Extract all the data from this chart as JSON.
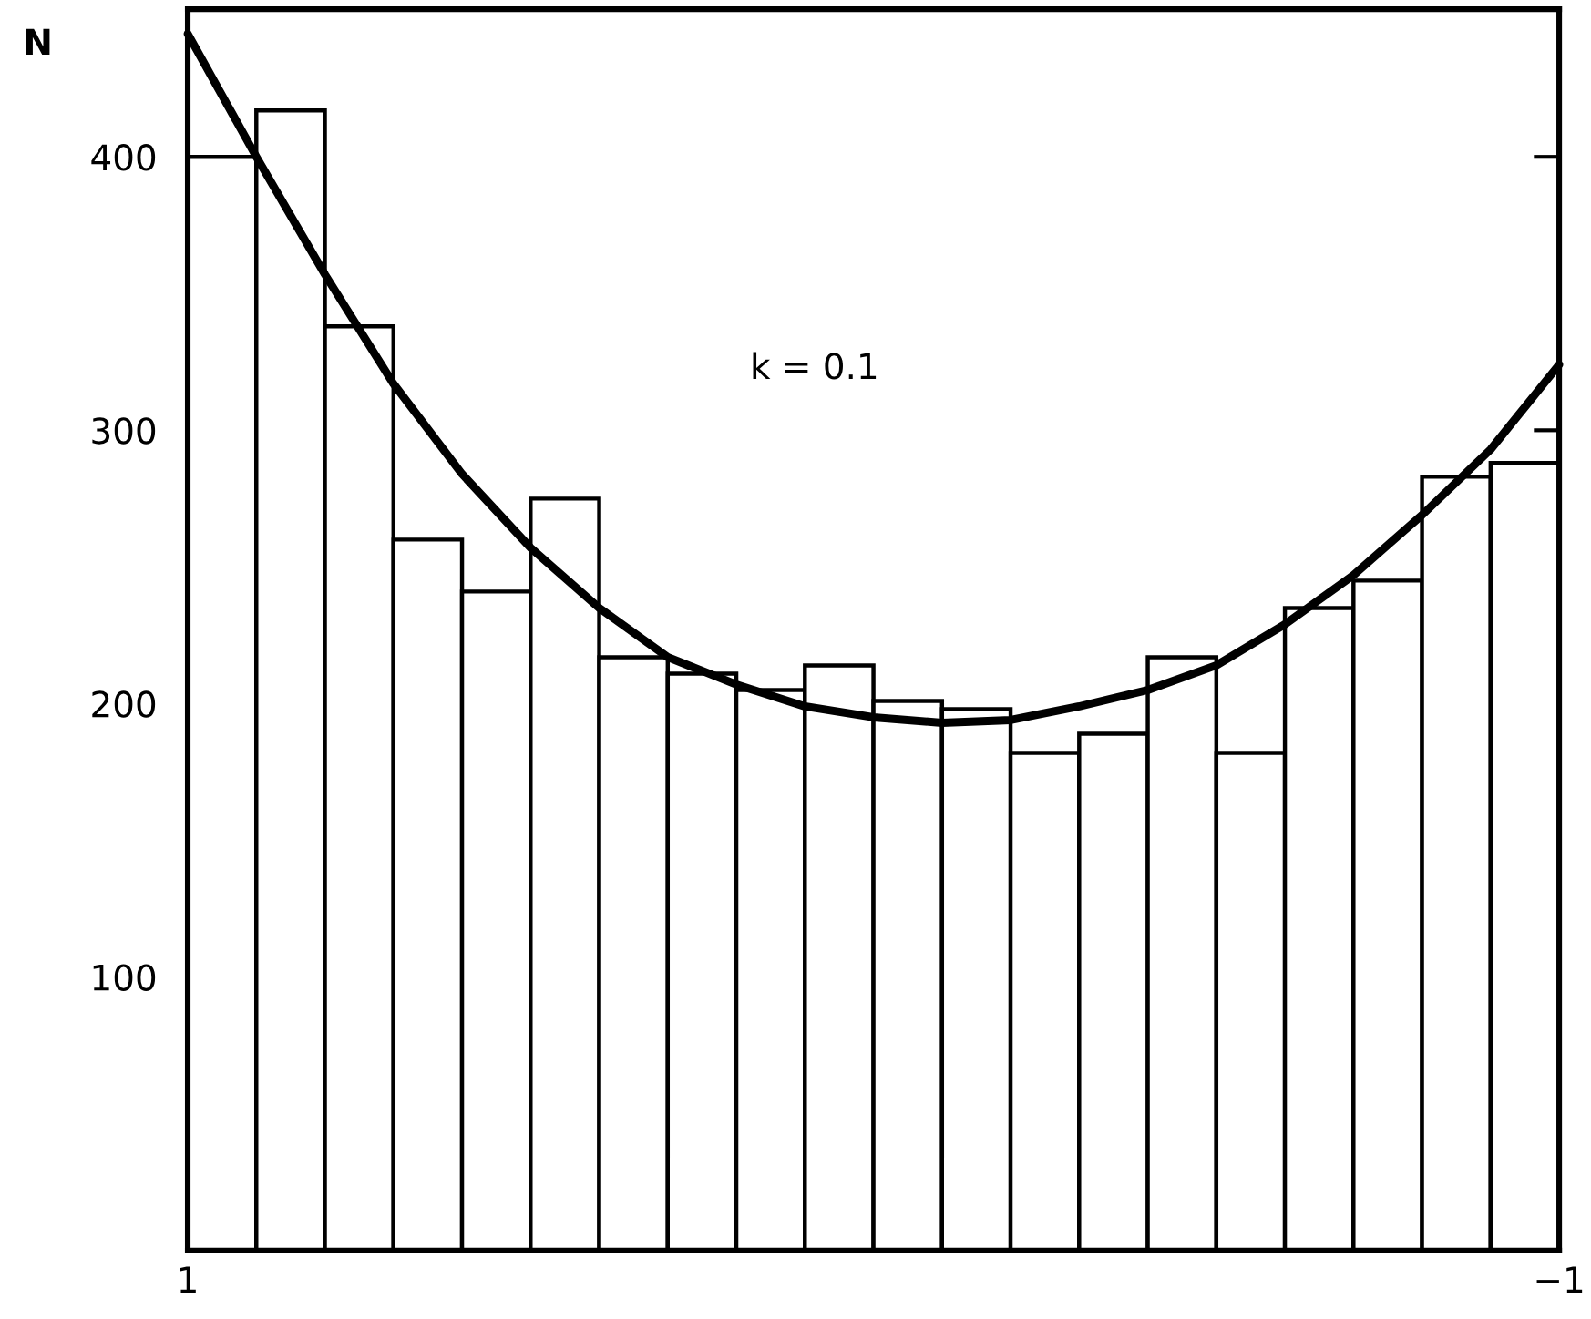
{
  "chart_data": {
    "type": "histogram",
    "ylabel": "N",
    "bins": [
      1,
      0.9,
      0.8,
      0.7,
      0.6,
      0.5,
      0.4,
      0.3,
      0.2,
      0.1,
      0,
      -0.1,
      -0.2,
      -0.3,
      -0.4,
      -0.5,
      -0.6,
      -0.7,
      -0.8,
      -0.9,
      -1
    ],
    "values": [
      400,
      417,
      338,
      260,
      241,
      275,
      217,
      211,
      205,
      214,
      201,
      198,
      182,
      189,
      217,
      182,
      235,
      245,
      283,
      288
    ],
    "color": "#ffffff",
    "series": [
      {
        "type": "line",
        "color": "#000000",
        "x": [
          1,
          0.9,
          0.8,
          0.7,
          0.6,
          0.5,
          0.4,
          0.3,
          0.2,
          0.1,
          0,
          -0.1,
          -0.2,
          -0.3,
          -0.4,
          -0.5,
          -0.6,
          -0.7,
          -0.8,
          -0.9,
          -1
        ],
        "values": [
          445,
          400,
          357,
          317,
          284,
          257,
          235,
          217,
          207,
          199,
          195,
          193,
          194,
          199,
          205,
          214,
          229,
          247,
          269,
          293,
          324
        ]
      }
    ],
    "annotations": [
      "k = 0.1"
    ],
    "xlim": [
      1,
      -1
    ],
    "xticks": [
      1,
      {
        "value": -1,
        "label": "−1"
      }
    ],
    "ylim": [
      0,
      454
    ],
    "yticks": [
      100,
      200,
      300,
      400
    ],
    "grid": false
  }
}
